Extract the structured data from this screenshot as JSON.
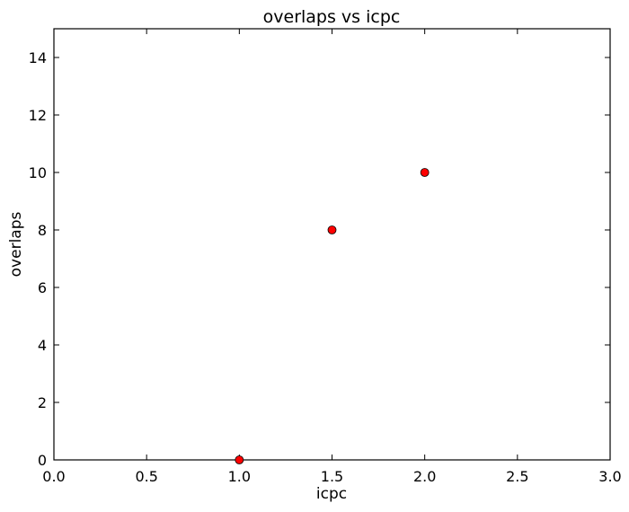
{
  "chart_data": {
    "type": "scatter",
    "title": "overlaps vs icpc",
    "xlabel": "icpc",
    "ylabel": "overlaps",
    "xlim": [
      0,
      3
    ],
    "ylim": [
      0,
      15
    ],
    "xticks": [
      0.0,
      0.5,
      1.0,
      1.5,
      2.0,
      2.5,
      3.0
    ],
    "xtick_labels": [
      "0.0",
      "0.5",
      "1.0",
      "1.5",
      "2.0",
      "2.5",
      "3.0"
    ],
    "yticks": [
      0,
      2,
      4,
      6,
      8,
      10,
      12,
      14
    ],
    "ytick_labels": [
      "0",
      "2",
      "4",
      "6",
      "8",
      "10",
      "12",
      "14"
    ],
    "grid": false,
    "series": [
      {
        "marker_color": "#ff0000",
        "points": [
          {
            "x": 1.0,
            "y": 0
          },
          {
            "x": 1.5,
            "y": 8
          },
          {
            "x": 2.0,
            "y": 10
          }
        ]
      }
    ]
  }
}
